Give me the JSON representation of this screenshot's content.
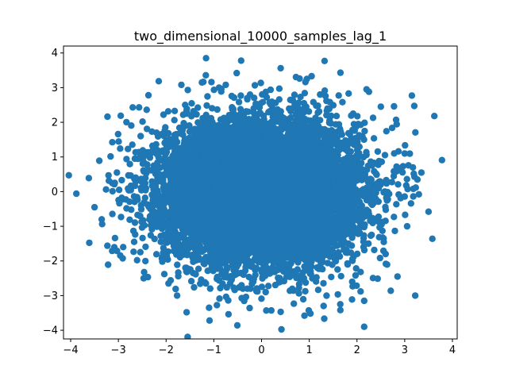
{
  "chart_data": {
    "type": "scatter",
    "title": "two_dimensional_10000_samples_lag_1",
    "xlabel": "",
    "ylabel": "",
    "xlim": [
      -4.15,
      4.1
    ],
    "ylim": [
      -4.25,
      4.2
    ],
    "x_ticks": [
      -4,
      -3,
      -2,
      -1,
      0,
      1,
      2,
      3,
      4
    ],
    "x_tick_labels": [
      "−4",
      "−3",
      "−2",
      "−1",
      "0",
      "1",
      "2",
      "3",
      "4"
    ],
    "y_ticks": [
      -4,
      -3,
      -2,
      -1,
      0,
      1,
      2,
      3,
      4
    ],
    "y_tick_labels": [
      "−4",
      "−3",
      "−2",
      "−1",
      "0",
      "1",
      "2",
      "3",
      "4"
    ],
    "grid": false,
    "legend": "none",
    "marker_color": "#1f77b4",
    "sample_count": 10000,
    "distribution": "approximately standard bivariate normal, centered near (0, 0)",
    "outlier_points": [
      {
        "x": -3.88,
        "y": -0.06
      },
      {
        "x": -3.62,
        "y": 0.39
      },
      {
        "x": -3.5,
        "y": -0.45
      },
      {
        "x": -3.4,
        "y": 0.89
      },
      {
        "x": -3.35,
        "y": -0.8
      },
      {
        "x": -3.07,
        "y": -1.34
      },
      {
        "x": -3.13,
        "y": -1.71
      },
      {
        "x": -3.03,
        "y": 0.55
      },
      {
        "x": -2.95,
        "y": 2.19
      },
      {
        "x": -2.8,
        "y": 1.23
      },
      {
        "x": -2.7,
        "y": 2.43
      },
      {
        "x": -2.67,
        "y": -1.45
      },
      {
        "x": -2.37,
        "y": 2.78
      },
      {
        "x": -2.47,
        "y": -2.5
      },
      {
        "x": -2.08,
        "y": -2.02
      },
      {
        "x": -1.95,
        "y": -2.65
      },
      {
        "x": -1.8,
        "y": -2.81
      },
      {
        "x": -1.77,
        "y": -3.0
      },
      {
        "x": -1.68,
        "y": 3.08
      },
      {
        "x": -1.57,
        "y": -3.48
      },
      {
        "x": -1.25,
        "y": 3.15
      },
      {
        "x": -1.05,
        "y": 3.16
      },
      {
        "x": -1.1,
        "y": -3.35
      },
      {
        "x": -0.75,
        "y": 3.08
      },
      {
        "x": -0.52,
        "y": 3.42
      },
      {
        "x": -0.25,
        "y": -3.36
      },
      {
        "x": 0.1,
        "y": -3.43
      },
      {
        "x": 0.4,
        "y": 3.56
      },
      {
        "x": 0.4,
        "y": -3.47
      },
      {
        "x": 0.9,
        "y": -3.58
      },
      {
        "x": 0.95,
        "y": 3.25
      },
      {
        "x": 1.05,
        "y": 3.33
      },
      {
        "x": 1.32,
        "y": 3.77
      },
      {
        "x": 1.3,
        "y": -3.3
      },
      {
        "x": 1.65,
        "y": -3.25
      },
      {
        "x": 2.15,
        "y": -3.9
      },
      {
        "x": 2.15,
        "y": -3.15
      },
      {
        "x": 2.2,
        "y": 2.95
      },
      {
        "x": 2.25,
        "y": 2.88
      },
      {
        "x": 2.5,
        "y": 2.45
      },
      {
        "x": 2.85,
        "y": -2.45
      },
      {
        "x": 2.82,
        "y": 2.07
      },
      {
        "x": 3.15,
        "y": 2.77
      },
      {
        "x": 3.2,
        "y": 2.47
      },
      {
        "x": 3.22,
        "y": -3.0
      },
      {
        "x": 3.35,
        "y": 0.55
      },
      {
        "x": 3.5,
        "y": -0.58
      },
      {
        "x": 3.58,
        "y": -1.36
      },
      {
        "x": 3.78,
        "y": 0.91
      },
      {
        "x": 3.18,
        "y": 0.08
      },
      {
        "x": 3.05,
        "y": -1.0
      },
      {
        "x": 3.0,
        "y": 1.1
      },
      {
        "x": -2.9,
        "y": -1.6
      },
      {
        "x": -2.2,
        "y": 1.7
      },
      {
        "x": 2.6,
        "y": -1.8
      },
      {
        "x": 1.9,
        "y": -2.6
      },
      {
        "x": -1.6,
        "y": 2.5
      }
    ]
  }
}
